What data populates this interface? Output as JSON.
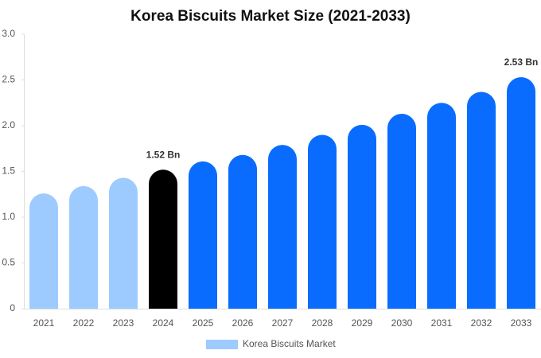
{
  "chart_data": {
    "type": "bar",
    "title": "Korea Biscuits Market Size (2021-2033)",
    "categories": [
      "2021",
      "2022",
      "2023",
      "2024",
      "2025",
      "2026",
      "2027",
      "2028",
      "2029",
      "2030",
      "2031",
      "2032",
      "2033"
    ],
    "series": [
      {
        "name": "Korea Biscuits Market",
        "color": "#9ecbff",
        "colors": [
          "#9ecbff",
          "#9ecbff",
          "#9ecbff",
          "#000000",
          "#0a6cff",
          "#0a6cff",
          "#0a6cff",
          "#0a6cff",
          "#0a6cff",
          "#0a6cff",
          "#0a6cff",
          "#0a6cff",
          "#0a6cff"
        ],
        "values": [
          1.26,
          1.34,
          1.43,
          1.52,
          1.61,
          1.68,
          1.79,
          1.9,
          2.01,
          2.13,
          2.25,
          2.37,
          2.53
        ],
        "value_labels": [
          null,
          null,
          null,
          "1.52 Bn",
          null,
          null,
          null,
          null,
          null,
          null,
          null,
          null,
          "2.53 Bn"
        ]
      }
    ],
    "ylim": [
      0,
      3
    ],
    "yticks": [
      0,
      0.5,
      {
        "value": 1,
        "label": "1.0"
      },
      {
        "value": 1.5,
        "label": "1.5"
      },
      {
        "value": 2,
        "label": "2.0"
      },
      {
        "value": 2.5,
        "label": "2.5"
      },
      {
        "value": 3,
        "label": "3.0"
      }
    ],
    "grid": false,
    "legend": "bottom"
  }
}
